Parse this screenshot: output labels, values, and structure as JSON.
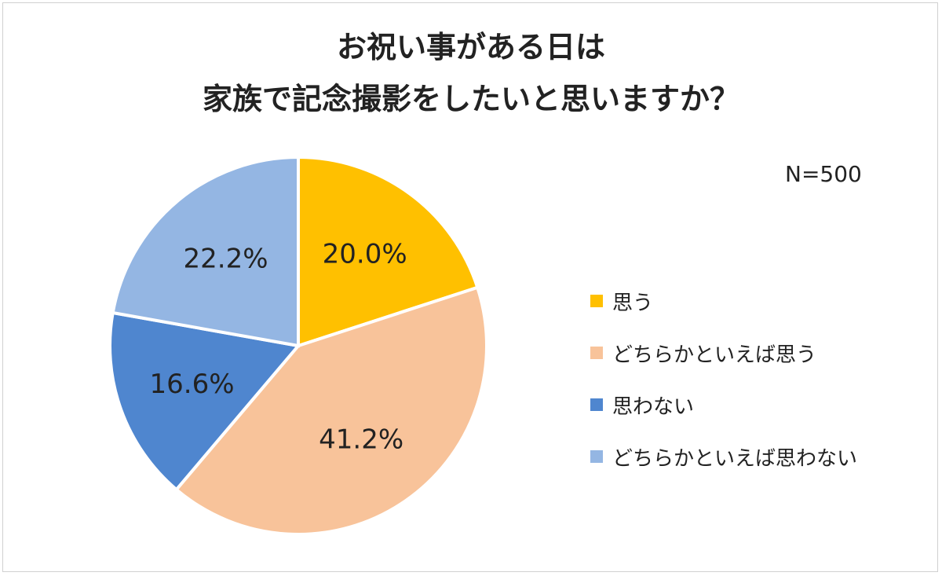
{
  "chart_data": {
    "type": "pie",
    "title_lines": [
      "お祝い事がある日は",
      "家族で記念撮影をしたいと思いますか？"
    ],
    "note": "N=500",
    "legend_placement": "right",
    "slices": [
      {
        "label": "思う",
        "value": 20.0,
        "display": "20.0%",
        "color": "#FFC000"
      },
      {
        "label": "どちらかといえば思う",
        "value": 41.2,
        "display": "41.2%",
        "color": "#F8C39A"
      },
      {
        "label": "思わない",
        "value": 16.6,
        "display": "16.6%",
        "color": "#4F86CF"
      },
      {
        "label": "どちらかといえば思わない",
        "value": 22.2,
        "display": "22.2%",
        "color": "#94B6E3"
      }
    ]
  }
}
